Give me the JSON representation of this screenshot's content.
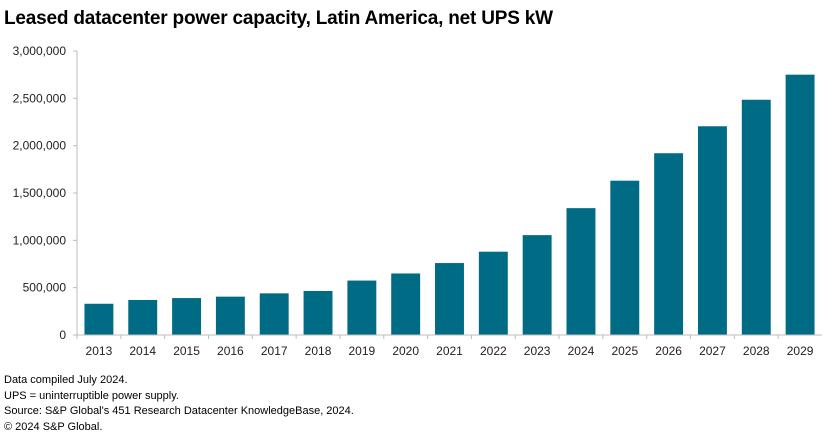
{
  "chart_data": {
    "type": "bar",
    "title": "Leased datacenter power capacity, Latin America, net UPS kW",
    "xlabel": "",
    "ylabel": "",
    "categories": [
      "2013",
      "2014",
      "2015",
      "2016",
      "2017",
      "2018",
      "2019",
      "2020",
      "2021",
      "2022",
      "2023",
      "2024",
      "2025",
      "2026",
      "2027",
      "2028",
      "2029"
    ],
    "values": [
      330000,
      370000,
      390000,
      405000,
      440000,
      465000,
      575000,
      650000,
      760000,
      880000,
      1055000,
      1340000,
      1630000,
      1920000,
      2205000,
      2485000,
      2750000
    ],
    "ylim": [
      0,
      3000000
    ],
    "yticks": [
      0,
      500000,
      1000000,
      1500000,
      2000000,
      2500000,
      3000000
    ],
    "ytick_labels": [
      "0",
      "500,000",
      "1,000,000",
      "1,500,000",
      "2,000,000",
      "2,500,000",
      "3,000,000"
    ],
    "bar_color": "#006b85",
    "grid": false,
    "legend": "none"
  },
  "notes": [
    "Data compiled July 2024.",
    "UPS = uninterruptible power supply.",
    "Source: S&P Global's 451 Research Datacenter KnowledgeBase, 2024.",
    "© 2024 S&P Global."
  ]
}
